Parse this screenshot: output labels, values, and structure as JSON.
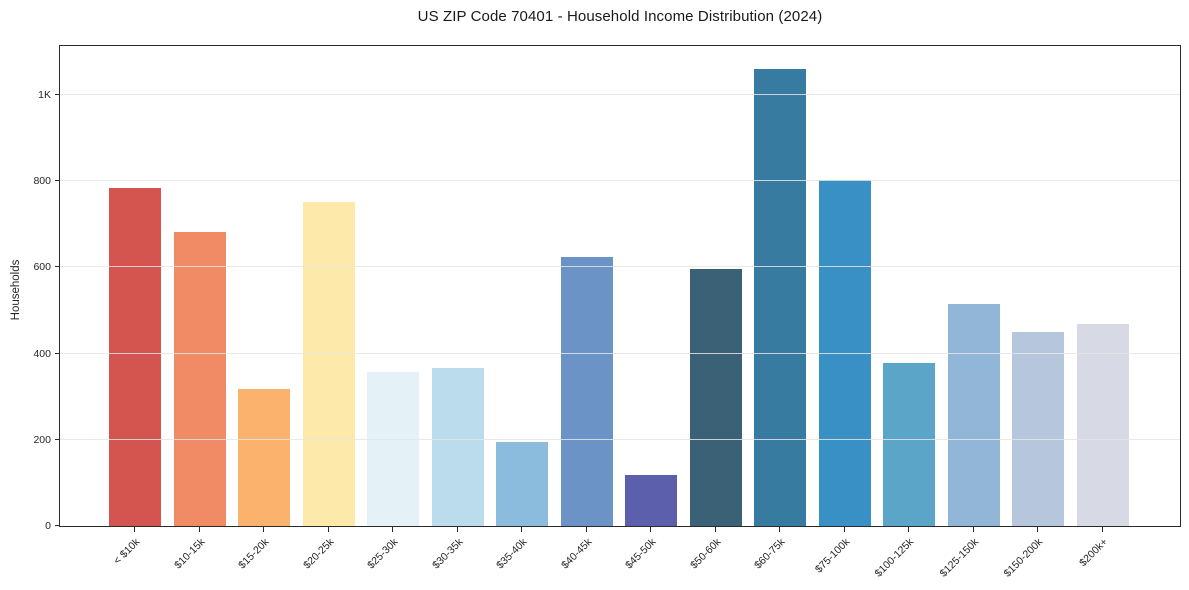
{
  "figure": {
    "background": "#ffffff",
    "text_color": "#262626",
    "spine_color": "#2b2b2b",
    "grid_color": "#e5e5e5"
  },
  "chart_data": {
    "type": "bar",
    "title": "US ZIP Code 70401 - Household Income Distribution (2024)",
    "xlabel": "",
    "ylabel": "Households",
    "categories": [
      "< $10k",
      "$10-15k",
      "$15-20k",
      "$20-25k",
      "$25-30k",
      "$30-35k",
      "$35-40k",
      "$40-45k",
      "$45-50k",
      "$50-60k",
      "$60-75k",
      "$75-100k",
      "$100-125k",
      "$125-150k",
      "$150-200k",
      "$200k+"
    ],
    "values": [
      784,
      683,
      317,
      751,
      357,
      366,
      196,
      625,
      118,
      597,
      1061,
      803,
      378,
      516,
      450,
      470
    ],
    "bar_colors": [
      "#d4554f",
      "#f08b66",
      "#fbb26d",
      "#fde9a9",
      "#e4f1f6",
      "#badcec",
      "#8cbcdd",
      "#6b93c5",
      "#5c5fab",
      "#3a6175",
      "#377ca0",
      "#3990c4",
      "#5ba5c9",
      "#92b6d7",
      "#b6c6dd",
      "#d7d9e5"
    ],
    "ylim": [
      0,
      1114
    ],
    "yticks": {
      "values": [
        0,
        200,
        400,
        600,
        800,
        1000
      ],
      "labels": [
        "0",
        "200",
        "400",
        "600",
        "800",
        "1K"
      ]
    },
    "grid": "horizontal",
    "legend": "none",
    "x_tick_label_rotation": 45
  }
}
